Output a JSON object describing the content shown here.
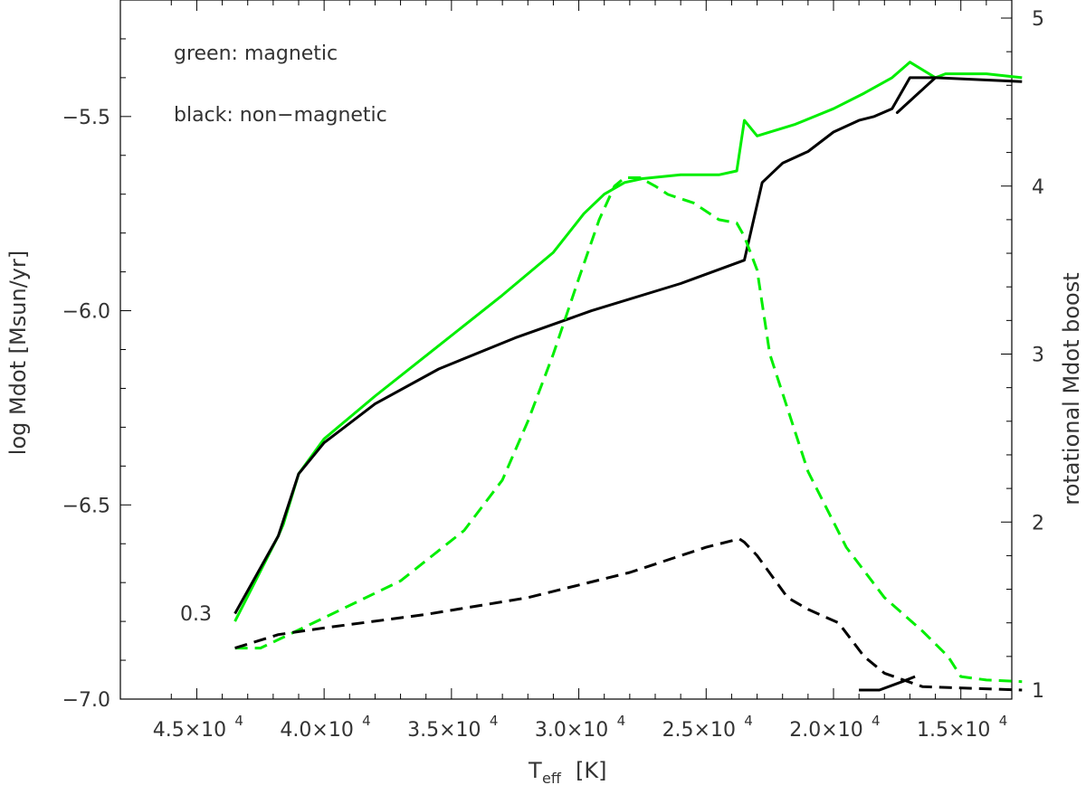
{
  "chart_data": {
    "type": "line",
    "xlabel": "T",
    "xlabel_sub": "eff",
    "xlabel_unit": "[K]",
    "ylabel": "log Mdot [Msun/yr]",
    "y2label": "rotational Mdot boost",
    "xlim": [
      48000,
      13000
    ],
    "ylim": [
      -7.0,
      -5.2
    ],
    "y2lim": [
      1,
      5
    ],
    "x_ticks": [
      {
        "value": 45000,
        "mant": "4.5×10",
        "exp": "4"
      },
      {
        "value": 40000,
        "mant": "4.0×10",
        "exp": "4"
      },
      {
        "value": 35000,
        "mant": "3.5×10",
        "exp": "4"
      },
      {
        "value": 30000,
        "mant": "3.0×10",
        "exp": "4"
      },
      {
        "value": 25000,
        "mant": "2.5×10",
        "exp": "4"
      },
      {
        "value": 20000,
        "mant": "2.0×10",
        "exp": "4"
      },
      {
        "value": 15000,
        "mant": "1.5×10",
        "exp": "4"
      }
    ],
    "y_ticks": [
      {
        "value": -5.5,
        "label": "−5.5"
      },
      {
        "value": -6.0,
        "label": "−6.0"
      },
      {
        "value": -6.5,
        "label": "−6.5"
      },
      {
        "value": -7.0,
        "label": "−7.0"
      }
    ],
    "y2_ticks": [
      {
        "value": 1,
        "label": "1"
      },
      {
        "value": 2,
        "label": "2"
      },
      {
        "value": 3,
        "label": "3"
      },
      {
        "value": 4,
        "label": "4"
      },
      {
        "value": 5,
        "label": "5"
      }
    ],
    "annotations": [
      {
        "text": "green: magnetic"
      },
      {
        "text": "black: non−magnetic"
      },
      {
        "text": "0.3"
      }
    ],
    "series": [
      {
        "color": "#00ee00",
        "style": "solid",
        "axis": "left",
        "x": [
          43500,
          41800,
          41600,
          41000,
          40000,
          38000,
          35500,
          33000,
          31000,
          29800,
          29000,
          28200,
          27500,
          26000,
          24500,
          23800,
          23500,
          23000,
          21500,
          20000,
          18800,
          17700,
          17000,
          16000,
          15600,
          14000,
          12600
        ],
        "y": [
          -6.8,
          -6.58,
          -6.55,
          -6.42,
          -6.33,
          -6.22,
          -6.09,
          -5.96,
          -5.85,
          -5.75,
          -5.7,
          -5.67,
          -5.66,
          -5.65,
          -5.65,
          -5.64,
          -5.51,
          -5.55,
          -5.52,
          -5.48,
          -5.44,
          -5.4,
          -5.36,
          -5.4,
          -5.39,
          -5.39,
          -5.4
        ]
      },
      {
        "color": "#000000",
        "style": "solid",
        "axis": "left",
        "x": [
          43500,
          41800,
          41600,
          41000,
          40000,
          38000,
          35500,
          32500,
          29500,
          26000,
          23500,
          22800,
          22000,
          21000,
          20000,
          19000,
          18400,
          17700,
          17000,
          16000,
          16500,
          17500,
          16000,
          12600
        ],
        "y": [
          -6.78,
          -6.58,
          -6.54,
          -6.42,
          -6.34,
          -6.24,
          -6.15,
          -6.07,
          -6.0,
          -5.93,
          -5.87,
          -5.67,
          -5.62,
          -5.59,
          -5.54,
          -5.51,
          -5.5,
          -5.48,
          -5.4,
          -5.4,
          -5.43,
          -5.49,
          -5.4,
          -5.41
        ]
      },
      {
        "color": "#00ee00",
        "style": "dashed",
        "axis": "right",
        "x": [
          43500,
          42500,
          41800,
          40000,
          37000,
          34500,
          33000,
          32000,
          31000,
          30000,
          29200,
          28600,
          28200,
          27600,
          27000,
          26500,
          25500,
          24500,
          23800,
          23500,
          23000,
          22500,
          21000,
          19500,
          18000,
          16500,
          15500,
          15000,
          14000,
          12600
        ],
        "y": [
          1.25,
          1.25,
          1.3,
          1.43,
          1.65,
          1.95,
          2.25,
          2.6,
          3.0,
          3.45,
          3.8,
          4.0,
          4.05,
          4.05,
          4.0,
          3.95,
          3.9,
          3.8,
          3.78,
          3.7,
          3.5,
          3.0,
          2.3,
          1.85,
          1.55,
          1.35,
          1.2,
          1.08,
          1.06,
          1.05
        ]
      },
      {
        "color": "#000000",
        "style": "dashed",
        "axis": "right",
        "x": [
          43500,
          41800,
          40000,
          36000,
          32000,
          28000,
          25000,
          23700,
          23500,
          23000,
          21800,
          21000,
          19800,
          18800,
          18000,
          16500,
          12600
        ],
        "y": [
          1.25,
          1.33,
          1.37,
          1.45,
          1.55,
          1.7,
          1.85,
          1.9,
          1.88,
          1.8,
          1.55,
          1.48,
          1.4,
          1.2,
          1.1,
          1.02,
          1.0
        ]
      },
      {
        "color": "#000000",
        "style": "solid",
        "axis": "right",
        "x": [
          19000,
          18200,
          17300,
          16800
        ],
        "y": [
          1.0,
          1.0,
          1.05,
          1.08
        ]
      }
    ]
  }
}
